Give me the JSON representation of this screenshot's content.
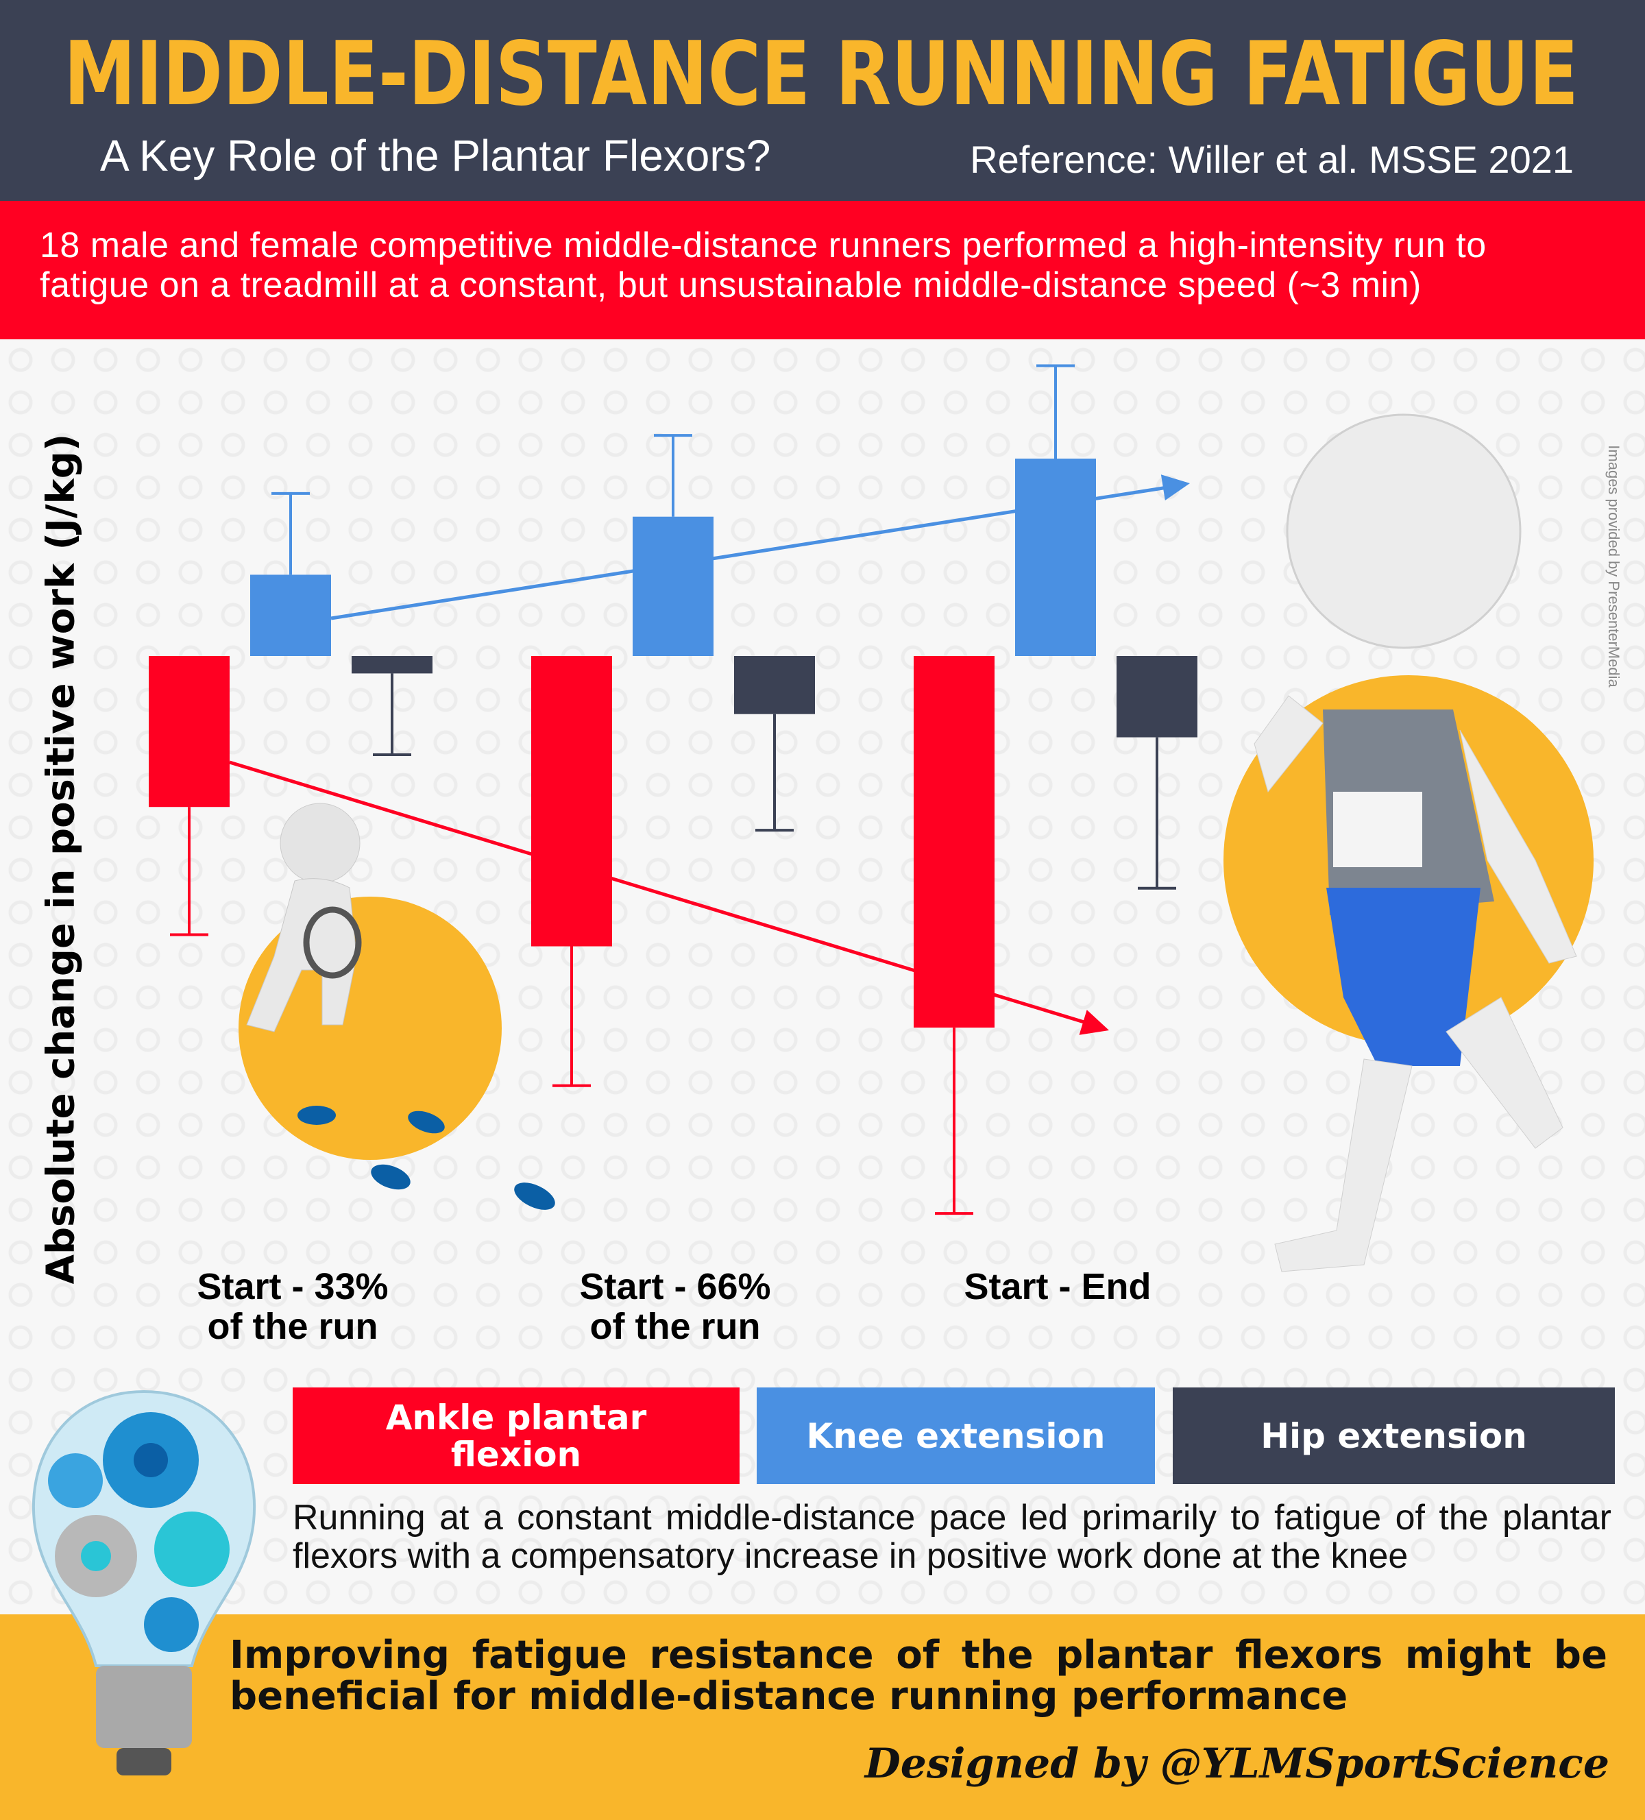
{
  "header": {
    "title": "MIDDLE-DISTANCE RUNNING FATIGUE",
    "subtitle": "A Key Role of the Plantar Flexors?",
    "reference": "Reference: Willer et al. MSSE 2021"
  },
  "intro": {
    "text": "18 male and female competitive middle-distance runners performed a high-intensity run to fatigue on a treadmill at a constant, but unsustainable middle-distance speed (~3 min)"
  },
  "credit": "Images provided by PresenterMedia",
  "colors": {
    "ankle": "#ff0022",
    "knee": "#4a90e2",
    "hip": "#3b4154",
    "accent": "#f9b62b",
    "header": "#3b4154"
  },
  "chart_data": {
    "type": "bar",
    "ylabel": "Absolute change in positive work (J/kg)",
    "categories": [
      "Start - 33%\nof the run",
      "Start - 66%\nof the run",
      "Start - End"
    ],
    "category_labels": [
      {
        "line1": "Start - 33%",
        "line2": "of the run"
      },
      {
        "line1": "Start - 66%",
        "line2": "of the run"
      },
      {
        "line1": "Start - End",
        "line2": ""
      }
    ],
    "ylim": [
      -0.5,
      0.3
    ],
    "grid": false,
    "axis_ticks": false,
    "series": [
      {
        "name": "Ankle plantar flexion",
        "color": "#ff0022",
        "values": [
          -0.13,
          -0.25,
          -0.32
        ],
        "error": [
          0.11,
          0.12,
          0.16
        ],
        "trend": "down"
      },
      {
        "name": "Knee extension",
        "color": "#4a90e2",
        "values": [
          0.07,
          0.12,
          0.17
        ],
        "error": [
          0.07,
          0.07,
          0.08
        ],
        "trend": "up"
      },
      {
        "name": "Hip extension",
        "color": "#3b4154",
        "values": [
          -0.015,
          -0.05,
          -0.07
        ],
        "error": [
          0.07,
          0.1,
          0.13
        ]
      }
    ]
  },
  "legend": [
    {
      "label": "Ankle plantar flexion",
      "color": "#ff0022"
    },
    {
      "label": "Knee extension",
      "color": "#4a90e2"
    },
    {
      "label": "Hip extension",
      "color": "#3b4154"
    }
  ],
  "summary": "Running at a constant middle-distance pace led primarily to fatigue of the plantar flexors with a compensatory increase in positive work done at the knee",
  "takeaway": "Improving fatigue resistance of the plantar flexors might be beneficial for middle-distance running performance",
  "designed_by": "Designed by @YLMSportScience"
}
